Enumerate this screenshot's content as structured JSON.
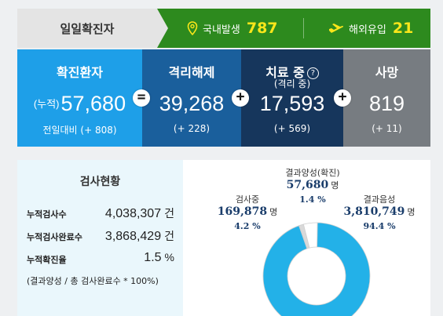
{
  "banner": {
    "title": "일일확진자",
    "domestic_label": "국내발생",
    "domestic_value": "787",
    "domestic_icon": "map-pin-icon",
    "overseas_label": "해외유입",
    "overseas_value": "21",
    "overseas_icon": "airplane-icon",
    "colors": {
      "label_bg": "#e4e4e4",
      "green": "#2d8a1e",
      "accent": "#f9e61a"
    }
  },
  "stats": {
    "confirmed": {
      "title": "확진환자",
      "prefix": "(누적)",
      "value": "57,680",
      "change": "전일대비 (+ 808)",
      "color": "#1e9fe8"
    },
    "released": {
      "title": "격리해제",
      "value": "39,268",
      "change": "(+ 228)",
      "color": "#1a5f9c"
    },
    "treating": {
      "title": "치료 중",
      "subtitle": "(격리 중)",
      "help": "?",
      "value": "17,593",
      "change": "(+ 569)",
      "color": "#16365c"
    },
    "deaths": {
      "title": "사망",
      "value": "819",
      "change": "(+ 11)",
      "color": "#777c81"
    },
    "operators": {
      "eq": "=",
      "plus": "+"
    }
  },
  "tests": {
    "title": "검사현황",
    "rows": [
      {
        "label": "누적검사수",
        "value": "4,038,307",
        "unit": "건"
      },
      {
        "label": "누적검사완료수",
        "value": "3,868,429",
        "unit": "건"
      },
      {
        "label": "누적확진율",
        "value": "1.5",
        "unit": "%"
      }
    ],
    "note": "(결과양성 / 총 검사완료수 * 100%)"
  },
  "chart_data": {
    "type": "pie",
    "donut": true,
    "slices": [
      {
        "label": "결과양성(확진)",
        "value": 57680,
        "value_text": "57,680",
        "unit": "명",
        "percent": 1.4,
        "percent_text": "1.4 %",
        "color": "#d9d9d9"
      },
      {
        "label": "검사중",
        "value": 169878,
        "value_text": "169,878",
        "unit": "명",
        "percent": 4.2,
        "percent_text": "4.2 %",
        "color": "#ffffff"
      },
      {
        "label": "결과음성",
        "value": 3810749,
        "value_text": "3,810,749",
        "unit": "명",
        "percent": 94.4,
        "percent_text": "94.4 %",
        "color": "#23b1e8"
      }
    ]
  }
}
